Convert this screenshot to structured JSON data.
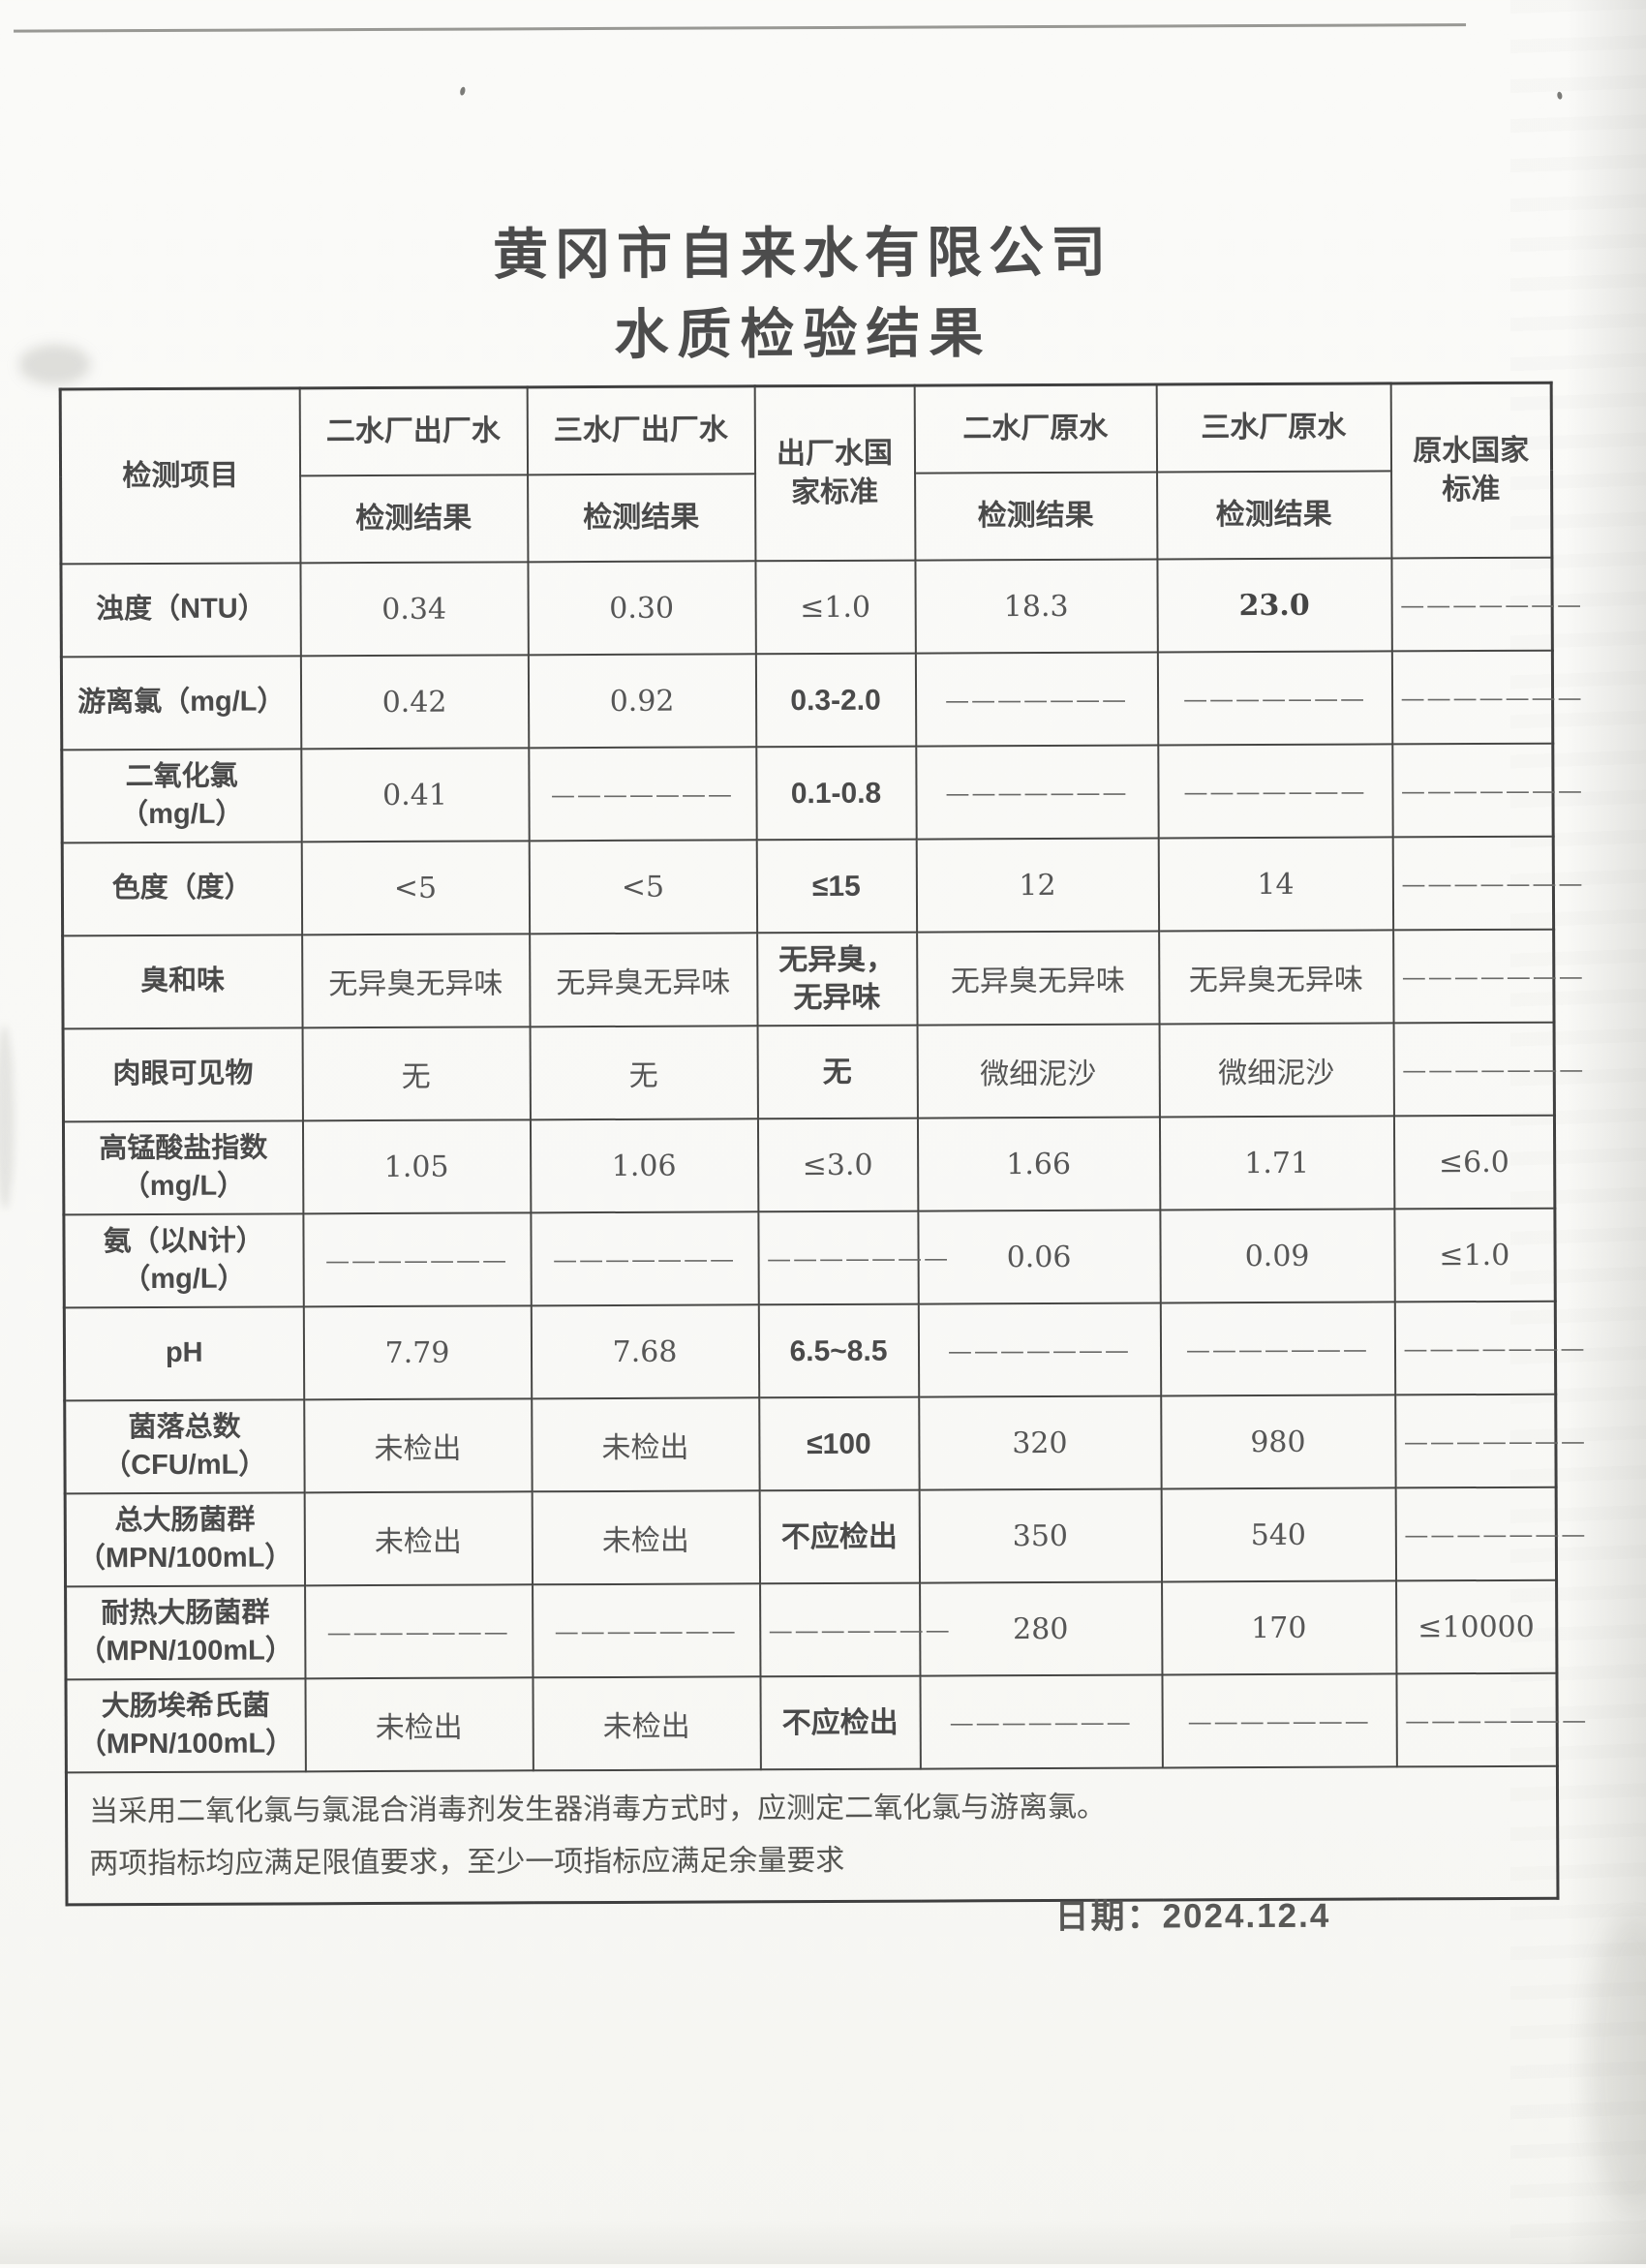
{
  "page": {
    "title": "黄冈市自来水有限公司",
    "subtitle": "水质检验结果",
    "date_line": "日期：2024.12.4"
  },
  "table": {
    "header": {
      "item_col": "检测项目",
      "factory_std": "出厂水国家标准",
      "raw_std": "原水国家标准",
      "groups": [
        {
          "plant": "二水厂出厂水",
          "result": "检测结果"
        },
        {
          "plant": "三水厂出厂水",
          "result": "检测结果"
        },
        {
          "plant": "二水厂原水",
          "result": "检测结果"
        },
        {
          "plant": "三水厂原水",
          "result": "检测结果"
        }
      ]
    },
    "rows": [
      {
        "label": "浊度（NTU）",
        "label2": "",
        "cells": [
          {
            "t": "0.34",
            "s": "v"
          },
          {
            "t": "0.30",
            "s": "v"
          },
          {
            "t": "≤1.0",
            "s": "v"
          },
          {
            "t": "18.3",
            "s": "v"
          },
          {
            "t": "23.0",
            "s": "B"
          },
          {
            "t": "———————",
            "s": "d"
          }
        ]
      },
      {
        "label": "游离氯（mg/L）",
        "label2": "",
        "cells": [
          {
            "t": "0.42",
            "s": "v"
          },
          {
            "t": "0.92",
            "s": "v"
          },
          {
            "t": "0.3-2.0",
            "s": "b"
          },
          {
            "t": "———————",
            "s": "d"
          },
          {
            "t": "———————",
            "s": "d"
          },
          {
            "t": "———————",
            "s": "d"
          }
        ]
      },
      {
        "label": "二氧化氯",
        "label2": "（mg/L）",
        "cells": [
          {
            "t": "0.41",
            "s": "v"
          },
          {
            "t": "———————",
            "s": "d"
          },
          {
            "t": "0.1-0.8",
            "s": "b"
          },
          {
            "t": "———————",
            "s": "d"
          },
          {
            "t": "———————",
            "s": "d"
          },
          {
            "t": "———————",
            "s": "d"
          }
        ]
      },
      {
        "label": "色度（度）",
        "label2": "",
        "cells": [
          {
            "t": "<5",
            "s": "v"
          },
          {
            "t": "<5",
            "s": "v"
          },
          {
            "t": "≤15",
            "s": "b"
          },
          {
            "t": "12",
            "s": "v"
          },
          {
            "t": "14",
            "s": "v"
          },
          {
            "t": "———————",
            "s": "d"
          }
        ]
      },
      {
        "label": "臭和味",
        "label2": "",
        "cells": [
          {
            "t": "无异臭无异味",
            "s": "v"
          },
          {
            "t": "无异臭无异味",
            "s": "v"
          },
          {
            "t": "无异臭，\n无异味",
            "s": "b"
          },
          {
            "t": "无异臭无异味",
            "s": "v"
          },
          {
            "t": "无异臭无异味",
            "s": "v"
          },
          {
            "t": "———————",
            "s": "d"
          }
        ]
      },
      {
        "label": "肉眼可见物",
        "label2": "",
        "cells": [
          {
            "t": "无",
            "s": "v"
          },
          {
            "t": "无",
            "s": "v"
          },
          {
            "t": "无",
            "s": "b"
          },
          {
            "t": "微细泥沙",
            "s": "v"
          },
          {
            "t": "微细泥沙",
            "s": "v"
          },
          {
            "t": "———————",
            "s": "d"
          }
        ]
      },
      {
        "label": "高锰酸盐指数",
        "label2": "（mg/L）",
        "cells": [
          {
            "t": "1.05",
            "s": "v"
          },
          {
            "t": "1.06",
            "s": "v"
          },
          {
            "t": "≤3.0",
            "s": "v"
          },
          {
            "t": "1.66",
            "s": "v"
          },
          {
            "t": "1.71",
            "s": "v"
          },
          {
            "t": "≤6.0",
            "s": "v"
          }
        ]
      },
      {
        "label": "氨（以N计）",
        "label2": "（mg/L）",
        "cells": [
          {
            "t": "———————",
            "s": "d"
          },
          {
            "t": "———————",
            "s": "d"
          },
          {
            "t": "———————",
            "s": "d"
          },
          {
            "t": "0.06",
            "s": "v"
          },
          {
            "t": "0.09",
            "s": "v"
          },
          {
            "t": "≤1.0",
            "s": "v"
          }
        ]
      },
      {
        "label": "pH",
        "label2": "",
        "cells": [
          {
            "t": "7.79",
            "s": "v"
          },
          {
            "t": "7.68",
            "s": "v"
          },
          {
            "t": "6.5~8.5",
            "s": "b"
          },
          {
            "t": "———————",
            "s": "d"
          },
          {
            "t": "———————",
            "s": "d"
          },
          {
            "t": "———————",
            "s": "d"
          }
        ]
      },
      {
        "label": "菌落总数",
        "label2": "（CFU/mL）",
        "cells": [
          {
            "t": "未检出",
            "s": "v"
          },
          {
            "t": "未检出",
            "s": "v"
          },
          {
            "t": "≤100",
            "s": "b"
          },
          {
            "t": "320",
            "s": "v"
          },
          {
            "t": "980",
            "s": "v"
          },
          {
            "t": "———————",
            "s": "d"
          }
        ]
      },
      {
        "label": "总大肠菌群",
        "label2": "（MPN/100mL）",
        "cells": [
          {
            "t": "未检出",
            "s": "v"
          },
          {
            "t": "未检出",
            "s": "v"
          },
          {
            "t": "不应检出",
            "s": "b"
          },
          {
            "t": "350",
            "s": "v"
          },
          {
            "t": "540",
            "s": "v"
          },
          {
            "t": "———————",
            "s": "d"
          }
        ]
      },
      {
        "label": "耐热大肠菌群",
        "label2": "（MPN/100mL）",
        "cells": [
          {
            "t": "———————",
            "s": "d"
          },
          {
            "t": "———————",
            "s": "d"
          },
          {
            "t": "———————",
            "s": "d"
          },
          {
            "t": "280",
            "s": "v"
          },
          {
            "t": "170",
            "s": "v"
          },
          {
            "t": "≤10000",
            "s": "v"
          }
        ]
      },
      {
        "label": "大肠埃希氏菌",
        "label2": "（MPN/100mL）",
        "cells": [
          {
            "t": "未检出",
            "s": "v"
          },
          {
            "t": "未检出",
            "s": "v"
          },
          {
            "t": "不应检出",
            "s": "b"
          },
          {
            "t": "———————",
            "s": "d"
          },
          {
            "t": "———————",
            "s": "d"
          },
          {
            "t": "———————",
            "s": "d"
          }
        ]
      }
    ],
    "note": [
      "当采用二氧化氯与氯混合消毒剂发生器消毒方式时，应测定二氧化氯与游离氯。",
      "两项指标均应满足限值要求，至少一项指标应满足余量要求"
    ]
  }
}
